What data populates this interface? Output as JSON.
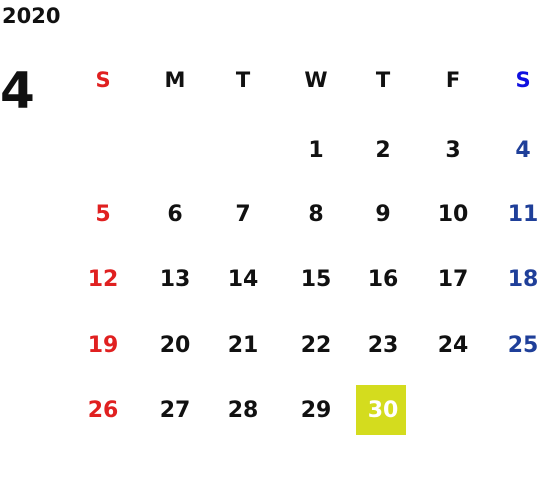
{
  "year": "2020",
  "month": "4",
  "weekdays": [
    "S",
    "M",
    "T",
    "W",
    "T",
    "F",
    "S"
  ],
  "weeks": [
    [
      null,
      null,
      null,
      "1",
      "2",
      "3",
      "4"
    ],
    [
      "5",
      "6",
      "7",
      "8",
      "9",
      "10",
      "11"
    ],
    [
      "12",
      "13",
      "14",
      "15",
      "16",
      "17",
      "18"
    ],
    [
      "19",
      "20",
      "21",
      "22",
      "23",
      "24",
      "25"
    ],
    [
      "26",
      "27",
      "28",
      "29",
      "30",
      null,
      null
    ]
  ],
  "selected_day": "30",
  "colors": {
    "sunday": "#e02020",
    "saturday_header": "#1010e0",
    "saturday": "#1f3f99",
    "weekday": "#111111",
    "selected_bg": "#d4dc1e",
    "selected_text": "#ffffff"
  }
}
